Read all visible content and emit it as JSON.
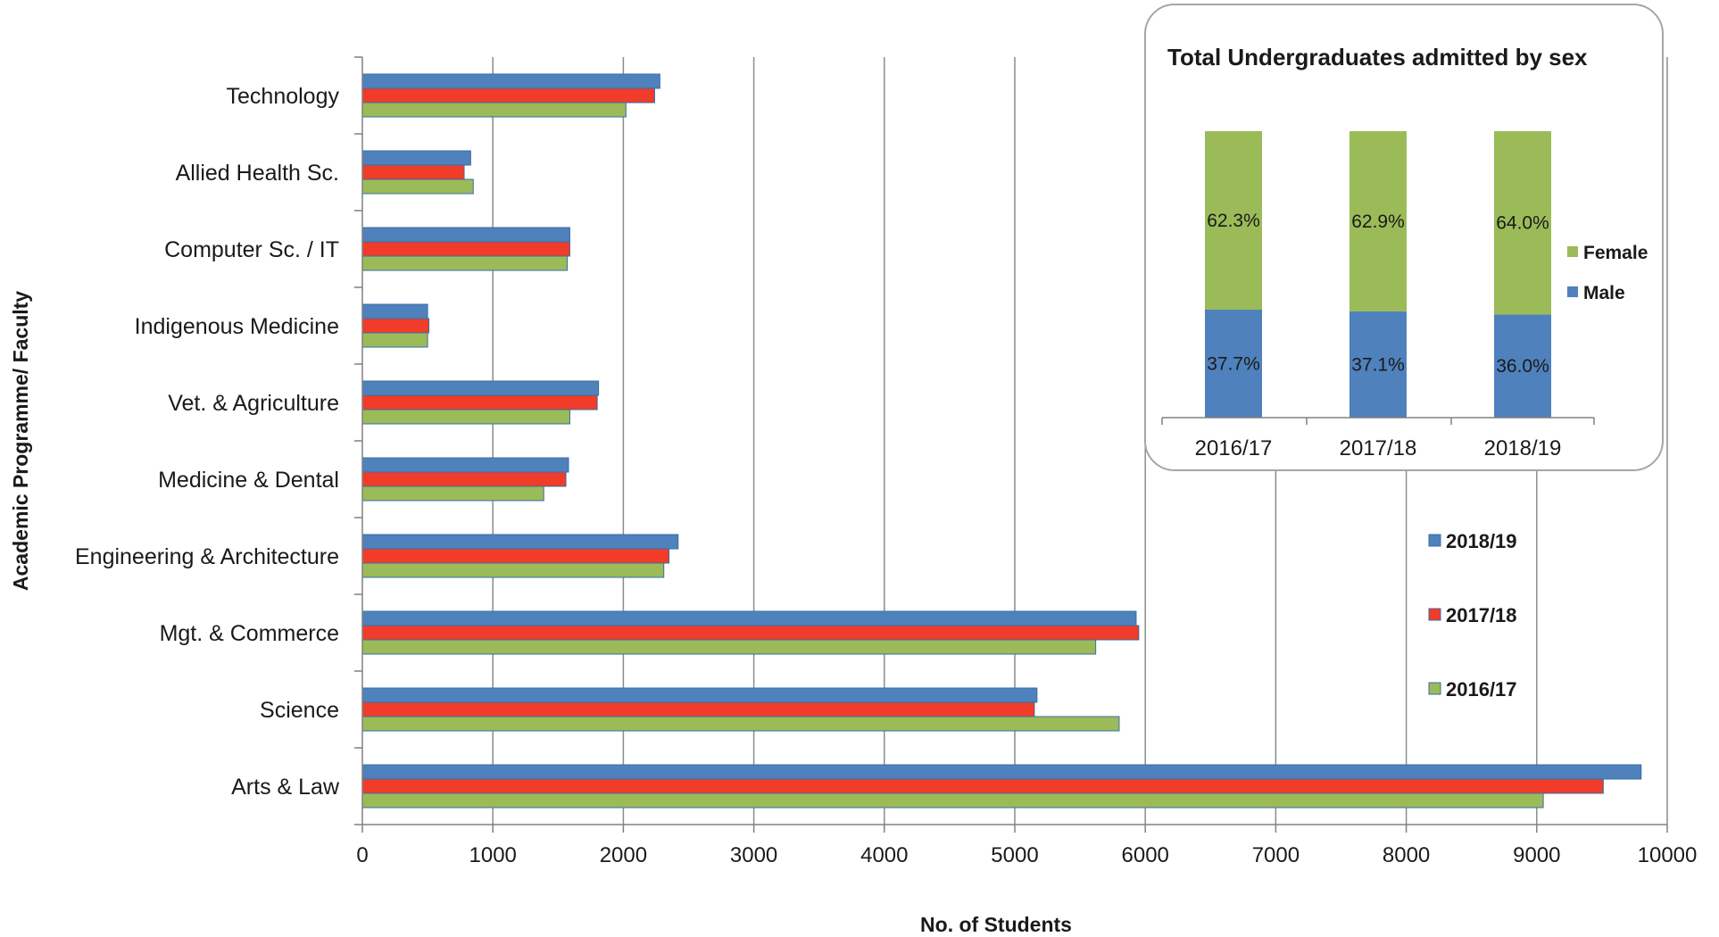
{
  "chart_data": [
    {
      "type": "bar",
      "orientation": "horizontal",
      "title": "",
      "xlabel": "No. of Students",
      "ylabel": "Academic Programme/ Faculty",
      "xlim": [
        0,
        10000
      ],
      "xticks": [
        "0",
        "1000",
        "2000",
        "3000",
        "4000",
        "5000",
        "6000",
        "7000",
        "8000",
        "9000",
        "10000"
      ],
      "grid": true,
      "legend": "right",
      "categories": [
        "Technology",
        "Allied Health Sc.",
        "Computer Sc. / IT",
        "Indigenous Medicine",
        "Vet. & Agriculture",
        "Medicine & Dental",
        "Engineering & Architecture",
        "Mgt. & Commerce",
        "Science",
        "Arts & Law"
      ],
      "series": [
        {
          "name": "2018/19",
          "color": "#4f81bd",
          "values": [
            2280,
            830,
            1590,
            500,
            1810,
            1580,
            2420,
            5930,
            5170,
            9800
          ]
        },
        {
          "name": "2017/18",
          "color": "#f03c28",
          "values": [
            2240,
            780,
            1590,
            510,
            1800,
            1560,
            2350,
            5950,
            5150,
            9510
          ]
        },
        {
          "name": "2016/17",
          "color": "#9bbb59",
          "values": [
            2020,
            850,
            1570,
            500,
            1590,
            1390,
            2310,
            5620,
            5800,
            9050
          ]
        }
      ]
    },
    {
      "type": "bar",
      "stacked": true,
      "percent": true,
      "title": "Total Undergraduates admitted by sex",
      "categories": [
        "2016/17",
        "2017/18",
        "2018/19"
      ],
      "legend": "right",
      "series": [
        {
          "name": "Male",
          "color": "#4f81bd",
          "values": [
            37.7,
            37.1,
            36.0
          ],
          "labels": [
            "37.7%",
            "37.1%",
            "36.0%"
          ]
        },
        {
          "name": "Female",
          "color": "#9bbb59",
          "values": [
            62.3,
            62.9,
            64.0
          ],
          "labels": [
            "62.3%",
            "62.9%",
            "64.0%"
          ]
        }
      ]
    }
  ]
}
